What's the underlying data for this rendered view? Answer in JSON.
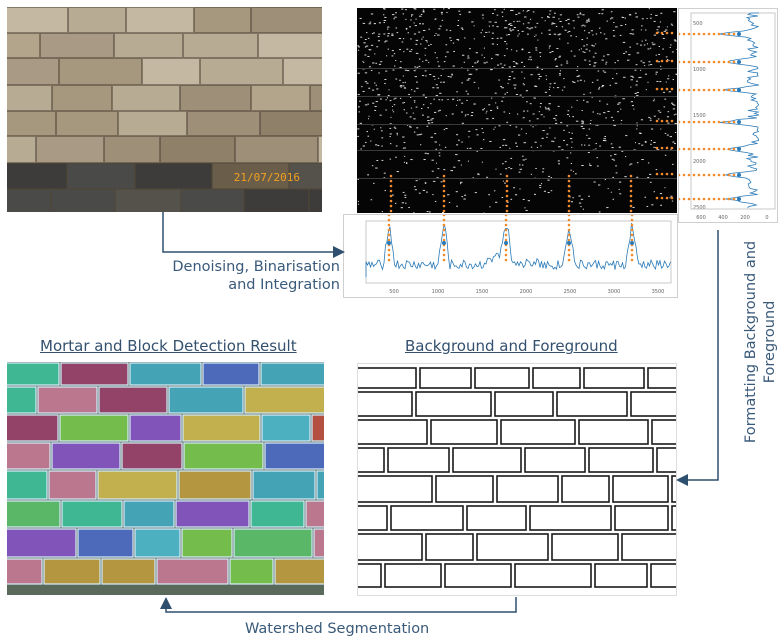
{
  "photo": {
    "date_stamp": "21/07/2016"
  },
  "labels": {
    "denoise_line1": "Denoising, Binarisation",
    "denoise_line2": "and Integration",
    "format_line1": "Formatting  Background and",
    "format_line2": "Foreground",
    "watershed": "Watershed Segmentation"
  },
  "titles": {
    "mortar": "Mortar and Block Detection Result",
    "background": "Background and Foreground"
  },
  "hplot": {
    "x_ticks": [
      "500",
      "1000",
      "1500",
      "2000",
      "2500",
      "3000",
      "3500"
    ]
  },
  "vplot": {
    "y_ticks": [
      "500",
      "1000",
      "1500",
      "2000",
      "2500"
    ],
    "x_ticks": [
      "600",
      "400",
      "200",
      "0"
    ]
  },
  "colors": {
    "arrow": "#2f4f6f",
    "plot_line": "#2a7ab8",
    "marker": "#f28a2a",
    "label": "#3a5a7a"
  }
}
